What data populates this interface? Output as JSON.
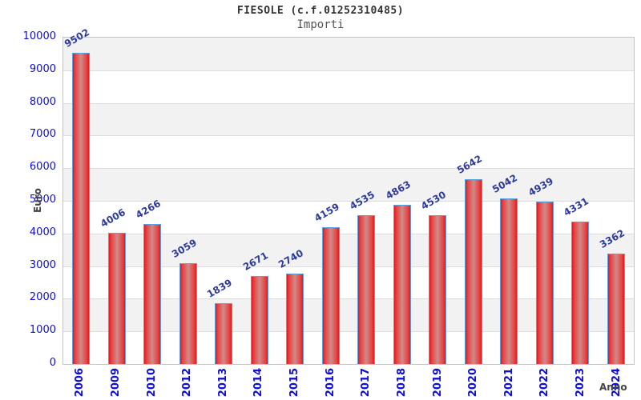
{
  "header": {
    "title": "FIESOLE (c.f.01252310485)",
    "subtitle": "Importi"
  },
  "chart_data": {
    "type": "bar",
    "title": "FIESOLE (c.f.01252310485)",
    "subtitle": "Importi",
    "xlabel": "Anno",
    "ylabel": "Euro",
    "categories": [
      "2006",
      "2009",
      "2010",
      "2012",
      "2013",
      "2014",
      "2015",
      "2016",
      "2017",
      "2018",
      "2019",
      "2020",
      "2021",
      "2022",
      "2023",
      "2024"
    ],
    "values": [
      9502,
      4006,
      4266,
      3059,
      1839,
      2671,
      2740,
      4159,
      4535,
      4863,
      4530,
      5642,
      5042,
      4939,
      4331,
      3362
    ],
    "ylim": [
      0,
      10000
    ],
    "ytick_step": 1000,
    "grid": true,
    "legend_position": "none",
    "banding": "alternating 1000-unit gray/white horizontal bands"
  },
  "colors": {
    "bar_edge": "#e2181e",
    "bar_center": "#d08a8a",
    "bar_border": "#5ba3e0",
    "tick_label_blue": "#0f0fd2",
    "data_label_navy": "#2e3a9e",
    "band_gray": "#f2f2f2",
    "gridline": "#dcdcdc",
    "axis_label_gray": "#444444"
  }
}
